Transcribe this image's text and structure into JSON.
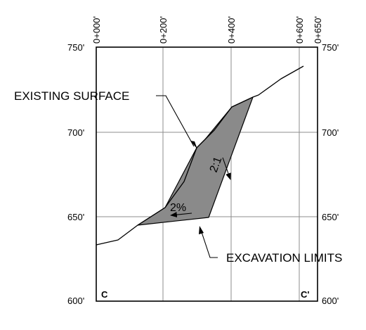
{
  "stations": [
    "0+000'",
    "0+200'",
    "0+400'",
    "0+600'",
    "0+650'"
  ],
  "elevations_left": [
    "750'",
    "700'",
    "650'",
    "600'"
  ],
  "elevations_right": [
    "750'",
    "700'",
    "650'",
    "600'"
  ],
  "section_start": "C",
  "section_end": "C'",
  "labels": {
    "existing_surface": "EXISTING SURFACE",
    "excavation_limits": "EXCAVATION LIMITS",
    "slope_ratio": "2:1",
    "slope_grade": "2%"
  },
  "colors": {
    "excavation_fill": "#8a8a8a",
    "grid": "#8c8c8c",
    "lines": "#000000"
  }
}
